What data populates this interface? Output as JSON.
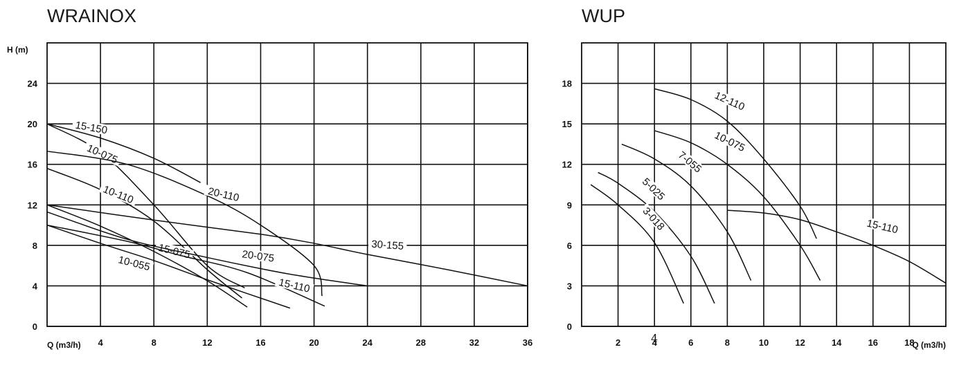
{
  "page_number": "4",
  "chart_data": [
    {
      "type": "line",
      "title": "WRAINOX",
      "xlabel": "Q (m3/h)",
      "ylabel": "H (m)",
      "xlim": [
        0,
        36
      ],
      "ylim": [
        0,
        28
      ],
      "x_ticks": [
        "4",
        "8",
        "12",
        "16",
        "20",
        "24",
        "28",
        "32",
        "36"
      ],
      "y_ticks": [
        "0",
        "4",
        "8",
        "12",
        "16",
        "20",
        "24"
      ],
      "grid": true,
      "series": [
        {
          "name": "15-150",
          "points": [
            [
              0,
              20
            ],
            [
              4,
              18.6
            ],
            [
              8,
              16.6
            ],
            [
              11.5,
              14.2
            ]
          ],
          "label_at": [
            3.3,
            19.5
          ],
          "label_rot": 10
        },
        {
          "name": "10-075",
          "points": [
            [
              0,
              20
            ],
            [
              4,
              17.2
            ],
            [
              8,
              12
            ],
            [
              12,
              6
            ],
            [
              14.8,
              3.8
            ]
          ],
          "label_at": [
            4.1,
            16.9
          ],
          "label_rot": 24
        },
        {
          "name": "20-110",
          "points": [
            [
              0,
              17.3
            ],
            [
              6,
              16
            ],
            [
              12,
              12.9
            ],
            [
              16,
              10
            ],
            [
              20,
              6
            ],
            [
              20.6,
              3
            ]
          ],
          "label_at": [
            13.2,
            12.9
          ],
          "label_rot": 13
        },
        {
          "name": "10-110",
          "points": [
            [
              0,
              15.6
            ],
            [
              4,
              13.5
            ],
            [
              8,
              10.4
            ],
            [
              12,
              5.6
            ],
            [
              14.6,
              2.8
            ]
          ],
          "label_at": [
            5.3,
            12.9
          ],
          "label_rot": 22
        },
        {
          "name": "30-155",
          "points": [
            [
              0,
              12
            ],
            [
              8,
              10.5
            ],
            [
              16,
              9.1
            ],
            [
              20,
              8.2
            ],
            [
              24,
              7.1
            ],
            [
              30,
              5.6
            ],
            [
              36,
              4
            ]
          ],
          "label_at": [
            25.5,
            7.9
          ],
          "label_rot": 4
        },
        {
          "name": "15-075",
          "points": [
            [
              0,
              12
            ],
            [
              4,
              9.9
            ],
            [
              8,
              7.4
            ],
            [
              12,
              4.5
            ],
            [
              15,
              1.9
            ]
          ],
          "label_at": [
            9.5,
            7.3
          ],
          "label_rot": 14
        },
        {
          "name": "20-075",
          "points": [
            [
              0,
              11.3
            ],
            [
              6,
              8.6
            ],
            [
              12,
              6.8
            ],
            [
              18,
              5.2
            ],
            [
              24,
              4
            ]
          ],
          "label_at": [
            15.8,
            6.8
          ],
          "label_rot": 8
        },
        {
          "name": "15-110",
          "points": [
            [
              0,
              10
            ],
            [
              6,
              8.4
            ],
            [
              10,
              7
            ],
            [
              15,
              5.3
            ],
            [
              20.8,
              2
            ]
          ],
          "label_at": [
            18.5,
            3.9
          ],
          "label_rot": 13
        },
        {
          "name": "10-055",
          "points": [
            [
              0,
              10
            ],
            [
              4,
              8.2
            ],
            [
              8,
              6.5
            ],
            [
              12,
              4.6
            ],
            [
              18.2,
              1.8
            ]
          ],
          "label_at": [
            6.5,
            6.1
          ],
          "label_rot": 14
        }
      ]
    },
    {
      "type": "line",
      "title": "WUP",
      "xlabel": "Q (m3/h)",
      "ylabel": "",
      "xlim": [
        0,
        20
      ],
      "ylim": [
        0,
        21
      ],
      "x_ticks": [
        "2",
        "4",
        "6",
        "8",
        "10",
        "12",
        "14",
        "16",
        "18"
      ],
      "y_ticks": [
        "0",
        "3",
        "6",
        "9",
        "12",
        "15",
        "18"
      ],
      "grid": true,
      "series": [
        {
          "name": "12-110",
          "points": [
            [
              4,
              17.6
            ],
            [
              6,
              16.8
            ],
            [
              8,
              15.2
            ],
            [
              10,
              12.4
            ],
            [
              12,
              8.9
            ],
            [
              12.9,
              6.5
            ]
          ],
          "label_at": [
            8.1,
            16.6
          ],
          "label_rot": 24
        },
        {
          "name": "10-075",
          "points": [
            [
              4,
              14.5
            ],
            [
              6,
              13.6
            ],
            [
              8,
              12
            ],
            [
              10,
              9.6
            ],
            [
              12,
              6
            ],
            [
              13.1,
              3.4
            ]
          ],
          "label_at": [
            8.1,
            13.6
          ],
          "label_rot": 26
        },
        {
          "name": "7-055",
          "points": [
            [
              2.2,
              13.5
            ],
            [
              4,
              12.4
            ],
            [
              6,
              10.4
            ],
            [
              8,
              7
            ],
            [
              9.3,
              3.4
            ]
          ],
          "label_at": [
            5.9,
            12.1
          ],
          "label_rot": 40
        },
        {
          "name": "5-025",
          "points": [
            [
              0.9,
              11.4
            ],
            [
              2,
              10.6
            ],
            [
              4,
              8.5
            ],
            [
              6,
              5.2
            ],
            [
              7.3,
              1.7
            ]
          ],
          "label_at": [
            3.9,
            10.1
          ],
          "label_rot": 44
        },
        {
          "name": "3-018",
          "points": [
            [
              0.5,
              10.5
            ],
            [
              2,
              9
            ],
            [
              4,
              6.2
            ],
            [
              5.6,
              1.7
            ]
          ],
          "label_at": [
            3.9,
            7.9
          ],
          "label_rot": 48
        },
        {
          "name": "15-110",
          "points": [
            [
              8,
              8.6
            ],
            [
              10,
              8.4
            ],
            [
              12,
              7.9
            ],
            [
              14,
              7
            ],
            [
              16,
              6
            ],
            [
              18,
              4.8
            ],
            [
              20,
              3.2
            ]
          ],
          "label_at": [
            16.5,
            7.3
          ],
          "label_rot": 13
        }
      ]
    }
  ]
}
